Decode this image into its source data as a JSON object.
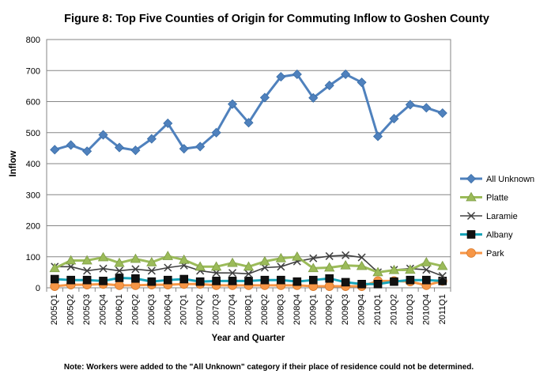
{
  "chart_data": {
    "type": "line",
    "title": "Figure 8: Top Five Counties of Origin for Commuting Inflow to Goshen County",
    "xlabel": "Year and Quarter",
    "ylabel": "Inflow",
    "ylim": [
      0,
      800
    ],
    "yticks": [
      0,
      100,
      200,
      300,
      400,
      500,
      600,
      700,
      800
    ],
    "grid": true,
    "legend_position": "right",
    "note": "Note: Workers were added to the \"All Unknown\" category if their place of residence could not be determined.",
    "categories": [
      "2005Q1",
      "2005Q2",
      "2005Q3",
      "2005Q4",
      "2006Q1",
      "2006Q2",
      "2006Q3",
      "2006Q4",
      "2007Q1",
      "2007Q2",
      "2007Q3",
      "2007Q4",
      "2008Q1",
      "2008Q2",
      "2008Q3",
      "2008Q4",
      "2009Q1",
      "2009Q2",
      "2009Q3",
      "2009Q4",
      "2010Q1",
      "2010Q2",
      "2010Q3",
      "2010Q4",
      "2011Q1"
    ],
    "series": [
      {
        "name": "All Unknown",
        "color": "#4F81BD",
        "marker": "diamond",
        "values": [
          445,
          460,
          440,
          493,
          452,
          443,
          480,
          530,
          448,
          455,
          500,
          592,
          532,
          613,
          680,
          688,
          612,
          652,
          688,
          662,
          488,
          545,
          590,
          580,
          563
        ]
      },
      {
        "name": "Platte",
        "color": "#9BBB59",
        "marker": "triangle",
        "values": [
          63,
          88,
          88,
          98,
          80,
          93,
          82,
          102,
          90,
          68,
          68,
          80,
          68,
          85,
          95,
          100,
          63,
          65,
          72,
          70,
          50,
          57,
          58,
          82,
          70
        ]
      },
      {
        "name": "Laramie",
        "color": "#404040",
        "marker": "x",
        "values": [
          68,
          68,
          55,
          62,
          55,
          60,
          55,
          65,
          72,
          55,
          48,
          48,
          45,
          65,
          68,
          85,
          95,
          102,
          105,
          98,
          50,
          58,
          62,
          58,
          38
        ]
      },
      {
        "name": "Albany",
        "color": "#17A3B8",
        "marker": "square",
        "values": [
          28,
          25,
          25,
          22,
          32,
          30,
          20,
          25,
          28,
          20,
          22,
          22,
          22,
          25,
          25,
          20,
          25,
          30,
          18,
          12,
          12,
          20,
          25,
          25,
          22
        ]
      },
      {
        "name": "Park",
        "color": "#F79646",
        "marker": "circle",
        "values": [
          5,
          10,
          10,
          12,
          8,
          8,
          10,
          10,
          12,
          12,
          8,
          8,
          8,
          8,
          8,
          8,
          5,
          5,
          5,
          5,
          22,
          22,
          20,
          8,
          22
        ]
      }
    ]
  }
}
